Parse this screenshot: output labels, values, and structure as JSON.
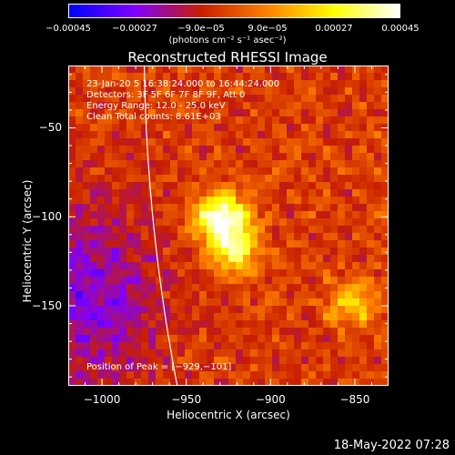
{
  "chart_data": {
    "type": "heatmap",
    "title": "Reconstructed RHESSI Image",
    "xlabel": "Heliocentric X (arcsec)",
    "ylabel": "Heliocentric Y (arcsec)",
    "xlim": [
      -1020,
      -830
    ],
    "ylim": [
      -195,
      -15
    ],
    "xticks": [
      -1000,
      -950,
      -900,
      -850
    ],
    "yticks": [
      -50,
      -100,
      -150
    ],
    "xtick_labels": [
      "−1000",
      "−950",
      "−900",
      "−850"
    ],
    "ytick_labels": [
      "−50",
      "−100",
      "−150"
    ],
    "colorbar": {
      "range": [
        -0.00045,
        0.00045
      ],
      "ticks": [
        -0.00045,
        -0.00027,
        -9e-05,
        9e-05,
        0.00027,
        0.00045
      ],
      "tick_labels": [
        "−0.00045",
        "−0.00027",
        "−9.0e−05",
        "9.0e−05",
        "0.00027",
        "0.00045"
      ],
      "unit_label": "(photons cm⁻² s⁻¹ asec⁻²)",
      "colors": [
        "#0000ff",
        "#8000ff",
        "#c81e00",
        "#ff8000",
        "#ffff00",
        "#ffffff"
      ]
    },
    "annotations": [
      "23-Jan-20 5 16:38:24.000 to 16:44:24.000",
      "Detectors: 3F 5F 6F 7F 8F 9F, Att 0",
      "Energy Range: 12.0 - 25.0 keV",
      "Clean    Total counts: 8.61E+03"
    ],
    "peak_label": "Position of Peak = [−929,−101]",
    "peak_position": [
      -929,
      -101
    ],
    "sources": [
      {
        "x": -929,
        "y": -101,
        "amplitude": 1.0
      },
      {
        "x": -922,
        "y": -120,
        "amplitude": 0.6
      },
      {
        "x": -850,
        "y": -148,
        "amplitude": 0.45
      }
    ],
    "grid": false
  },
  "footer": {
    "timestamp": "18-May-2022 07:28"
  }
}
